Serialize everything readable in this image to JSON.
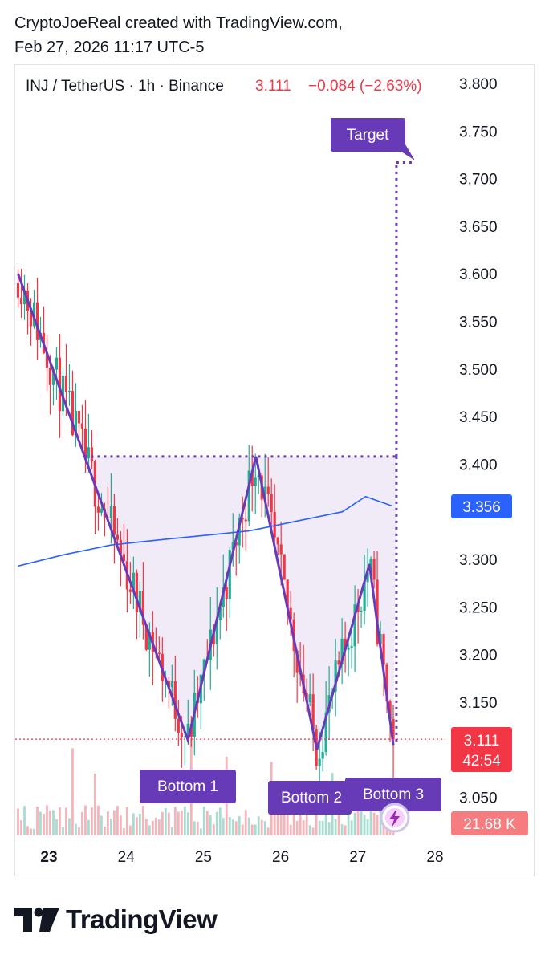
{
  "attribution": {
    "line1": "CryptoJoeReal created with TradingView.com,",
    "line2": "Feb 27, 2026 11:17 UTC-5"
  },
  "header": {
    "symbol": "INJ / TetherUS · 1h · Binance",
    "last": "3.111",
    "change": "−0.084 (−2.63%)"
  },
  "badges": {
    "ma_value": "3.356",
    "last_price": "3.111",
    "countdown": "42:54",
    "volume": "21.68 K"
  },
  "pattern_labels": {
    "target": "Target",
    "bottom1": "Bottom 1",
    "bottom2": "Bottom 2",
    "bottom3": "Bottom 3"
  },
  "brand": {
    "logo_text": "TradingView"
  },
  "colors": {
    "up": "#22ab94",
    "down": "#f23645",
    "pattern": "#673ab7",
    "pattern_fill": "#ede7f6",
    "ma": "#2962ff",
    "label_bg": "#673ab7"
  },
  "chart_data": {
    "type": "candlestick",
    "title": "INJ / TetherUS · 1h · Binance",
    "x_ticks": [
      "23",
      "24",
      "25",
      "26",
      "27",
      "28"
    ],
    "y_ticks": [
      "3.800",
      "3.750",
      "3.700",
      "3.650",
      "3.600",
      "3.550",
      "3.500",
      "3.450",
      "3.400",
      "3.350",
      "3.300",
      "3.250",
      "3.200",
      "3.150",
      "3.100",
      "3.050"
    ],
    "y_range": [
      3.025,
      3.82
    ],
    "price_axis": "right",
    "grid": false,
    "pattern": {
      "name": "triple bottom",
      "points": [
        {
          "day": 22.6,
          "price": 3.6
        },
        {
          "day": 24.8,
          "price": 3.11
        },
        {
          "day": 25.68,
          "price": 3.408
        },
        {
          "day": 26.47,
          "price": 3.1
        },
        {
          "day": 27.15,
          "price": 3.295
        },
        {
          "day": 27.46,
          "price": 3.105
        }
      ],
      "neckline": 3.408,
      "target": 3.717
    },
    "ma_series": [
      {
        "day": 22.6,
        "price": 3.293
      },
      {
        "day": 23.2,
        "price": 3.305
      },
      {
        "day": 23.8,
        "price": 3.315
      },
      {
        "day": 24.5,
        "price": 3.321
      },
      {
        "day": 25.0,
        "price": 3.325
      },
      {
        "day": 25.6,
        "price": 3.33
      },
      {
        "day": 26.2,
        "price": 3.34
      },
      {
        "day": 26.8,
        "price": 3.35
      },
      {
        "day": 27.1,
        "price": 3.366
      },
      {
        "day": 27.45,
        "price": 3.356
      }
    ],
    "last_price": 3.111,
    "last_volume": "21.68 K"
  }
}
